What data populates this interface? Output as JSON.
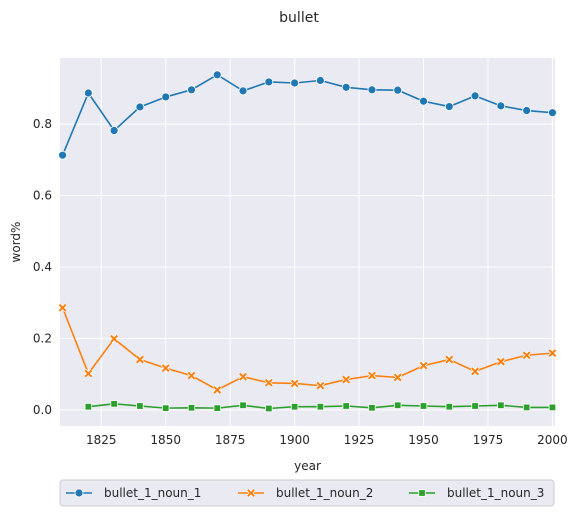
{
  "chart_data": {
    "type": "line",
    "title": "bullet",
    "xlabel": "year",
    "ylabel": "word%",
    "xlim": [
      1809,
      2001
    ],
    "ylim": [
      -0.045,
      0.985
    ],
    "xticks": [
      1825,
      1850,
      1875,
      1900,
      1925,
      1950,
      1975,
      2000
    ],
    "yticks": [
      0.0,
      0.2,
      0.4,
      0.6,
      0.8
    ],
    "grid": true,
    "legend_position": "bottom",
    "series": [
      {
        "name": "bullet_1_noun_1",
        "color": "#1f77b4",
        "marker": "circle",
        "x": [
          1810,
          1820,
          1830,
          1840,
          1850,
          1860,
          1870,
          1880,
          1890,
          1900,
          1910,
          1920,
          1930,
          1940,
          1950,
          1960,
          1970,
          1980,
          1990,
          2000
        ],
        "y": [
          0.713,
          0.887,
          0.782,
          0.848,
          0.876,
          0.896,
          0.938,
          0.893,
          0.918,
          0.915,
          0.922,
          0.903,
          0.896,
          0.895,
          0.864,
          0.849,
          0.879,
          0.851,
          0.838,
          0.832
        ]
      },
      {
        "name": "bullet_1_noun_2",
        "color": "#ff7f0e",
        "marker": "x",
        "x": [
          1810,
          1820,
          1830,
          1840,
          1850,
          1860,
          1870,
          1880,
          1890,
          1900,
          1910,
          1920,
          1930,
          1940,
          1950,
          1960,
          1970,
          1980,
          1990,
          2000
        ],
        "y": [
          0.286,
          0.102,
          0.199,
          0.141,
          0.117,
          0.096,
          0.056,
          0.093,
          0.076,
          0.074,
          0.068,
          0.085,
          0.096,
          0.091,
          0.124,
          0.141,
          0.108,
          0.135,
          0.153,
          0.159
        ]
      },
      {
        "name": "bullet_1_noun_3",
        "color": "#2ca02c",
        "marker": "square",
        "x": [
          1820,
          1830,
          1840,
          1850,
          1860,
          1870,
          1880,
          1890,
          1900,
          1910,
          1920,
          1930,
          1940,
          1950,
          1960,
          1970,
          1980,
          1990,
          2000
        ],
        "y": [
          0.009,
          0.017,
          0.011,
          0.005,
          0.006,
          0.005,
          0.013,
          0.004,
          0.009,
          0.009,
          0.011,
          0.006,
          0.013,
          0.011,
          0.009,
          0.011,
          0.013,
          0.007,
          0.007
        ]
      }
    ]
  }
}
